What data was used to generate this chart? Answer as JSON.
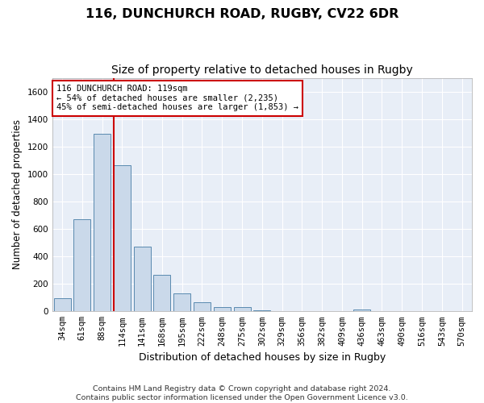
{
  "title": "116, DUNCHURCH ROAD, RUGBY, CV22 6DR",
  "subtitle": "Size of property relative to detached houses in Rugby",
  "xlabel": "Distribution of detached houses by size in Rugby",
  "ylabel": "Number of detached properties",
  "footer_line1": "Contains HM Land Registry data © Crown copyright and database right 2024.",
  "footer_line2": "Contains public sector information licensed under the Open Government Licence v3.0.",
  "annotation_line1": "116 DUNCHURCH ROAD: 119sqm",
  "annotation_line2": "← 54% of detached houses are smaller (2,235)",
  "annotation_line3": "45% of semi-detached houses are larger (1,853) →",
  "bar_color": "#cad9ea",
  "bar_edge_color": "#5a8ab0",
  "ref_line_color": "#cc0000",
  "annotation_box_color": "#cc0000",
  "bg_color": "#e8eef7",
  "categories": [
    "34sqm",
    "61sqm",
    "88sqm",
    "114sqm",
    "141sqm",
    "168sqm",
    "195sqm",
    "222sqm",
    "248sqm",
    "275sqm",
    "302sqm",
    "329sqm",
    "356sqm",
    "382sqm",
    "409sqm",
    "436sqm",
    "463sqm",
    "490sqm",
    "516sqm",
    "543sqm",
    "570sqm"
  ],
  "values": [
    95,
    670,
    1290,
    1065,
    470,
    265,
    128,
    65,
    33,
    33,
    10,
    0,
    0,
    0,
    0,
    15,
    0,
    0,
    0,
    0,
    0
  ],
  "ylim": [
    0,
    1700
  ],
  "yticks": [
    0,
    200,
    400,
    600,
    800,
    1000,
    1200,
    1400,
    1600
  ],
  "ref_bar_index": 3,
  "title_fontsize": 11.5,
  "subtitle_fontsize": 10,
  "axis_label_fontsize": 8.5,
  "tick_fontsize": 7.5,
  "annotation_fontsize": 7.5,
  "footer_fontsize": 6.8
}
